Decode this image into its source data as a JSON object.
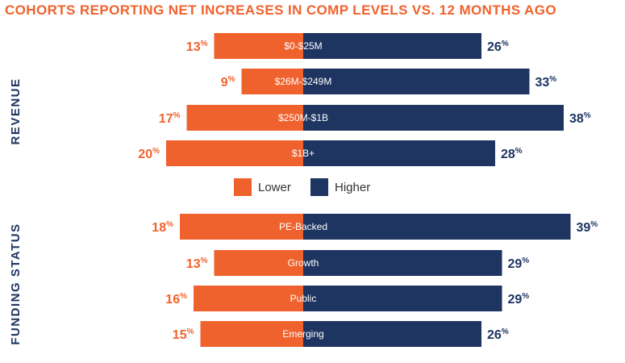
{
  "colors": {
    "lower": "#f0622d",
    "higher": "#1e3461",
    "title": "#f0622d",
    "group_label": "#1e3461"
  },
  "chart_data": {
    "type": "bar",
    "orientation": "horizontal-diverging",
    "title": "COHORTS REPORTING NET INCREASES IN COMP LEVELS VS. 12 MONTHS AGO",
    "value_suffix": "%",
    "legend": {
      "placement": "middle-center",
      "items": [
        "Lower",
        "Higher"
      ]
    },
    "series": [
      {
        "name": "Lower",
        "key": "lower"
      },
      {
        "name": "Higher",
        "key": "higher"
      }
    ],
    "groups": [
      {
        "name": "REVENUE",
        "categories": [
          "$0-$25M",
          "$26M-$249M",
          "$250M-$1B",
          "$1B+"
        ],
        "lower": [
          13,
          9,
          17,
          20
        ],
        "higher": [
          26,
          33,
          38,
          28
        ]
      },
      {
        "name": "FUNDING STATUS",
        "categories": [
          "PE-Backed",
          "Growth",
          "Public",
          "Emerging"
        ],
        "lower": [
          18,
          13,
          16,
          15
        ],
        "higher": [
          39,
          29,
          29,
          26
        ]
      }
    ]
  }
}
